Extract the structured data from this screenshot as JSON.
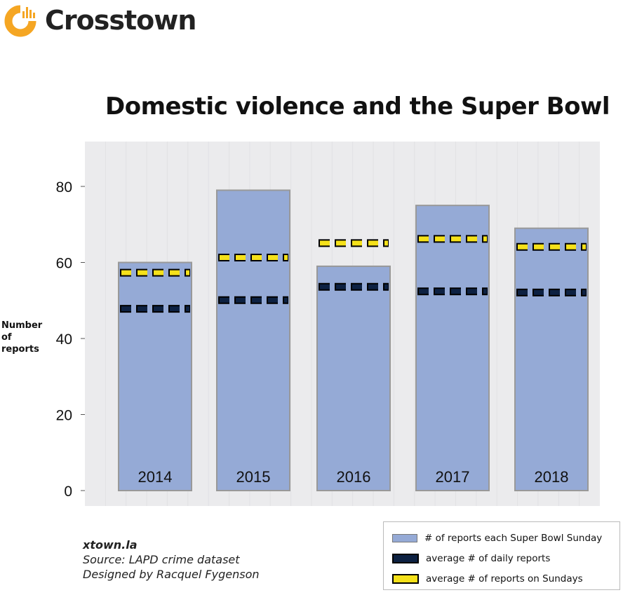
{
  "brand": {
    "name": "Crosstown",
    "accent": "#f5a623"
  },
  "source": {
    "site": "xtown.la",
    "line2": "Source: LAPD crime dataset",
    "line3": "Designed by Racquel Fygenson"
  },
  "chart_data": {
    "type": "bar",
    "title": "Domestic violence and the Super Bowl",
    "ylabel": "Number of reports",
    "ylabel_lines": [
      "Number",
      "of",
      "reports"
    ],
    "xlabel": "",
    "ylim": [
      0,
      90
    ],
    "yticks": [
      0,
      20,
      40,
      60,
      80
    ],
    "grid": true,
    "categories": [
      "2014",
      "2015",
      "2016",
      "2017",
      "2018"
    ],
    "series": [
      {
        "name": "# of reports each Super Bowl Sunday",
        "kind": "bar",
        "color": "#95aad6",
        "values": [
          60,
          79,
          59,
          75,
          69
        ]
      },
      {
        "name": "average # of daily reports",
        "kind": "dashed-line",
        "color": "#0d2142",
        "values": [
          47.8,
          50.1,
          53.6,
          52.4,
          52.1
        ]
      },
      {
        "name": "average # of reports on Sundays",
        "kind": "dashed-line",
        "color": "#f5e11a",
        "values": [
          57.3,
          61.3,
          65.1,
          66.2,
          64.1
        ]
      }
    ],
    "legend_position": "bottom-right",
    "background": "#ebebed"
  }
}
